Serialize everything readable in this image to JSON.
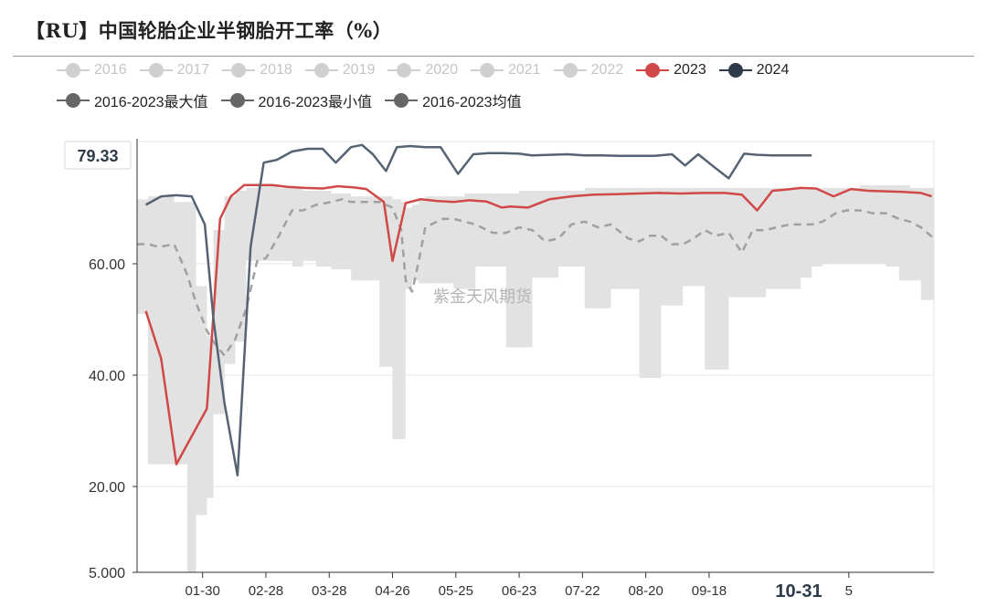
{
  "header": {
    "title": "【RU】中国轮胎企业半钢胎开工率（%）"
  },
  "legend": {
    "row1": [
      {
        "label": "2016",
        "color": "#cfcfcf"
      },
      {
        "label": "2017",
        "color": "#cfcfcf"
      },
      {
        "label": "2018",
        "color": "#cfcfcf"
      },
      {
        "label": "2019",
        "color": "#cfcfcf"
      },
      {
        "label": "2020",
        "color": "#cfcfcf"
      },
      {
        "label": "2021",
        "color": "#cfcfcf"
      },
      {
        "label": "2022",
        "color": "#cfcfcf"
      },
      {
        "label": "2023",
        "color": "#d04848"
      },
      {
        "label": "2024",
        "color": "#2e3b4a"
      }
    ],
    "row2": [
      {
        "label": "2016-2023最大值",
        "color": "#666666"
      },
      {
        "label": "2016-2023最小值",
        "color": "#666666"
      },
      {
        "label": "2016-2023均值",
        "color": "#666666"
      }
    ]
  },
  "watermark": "紫金天风期货",
  "highlight": {
    "y_value": "79.33",
    "x_label": "10-31"
  },
  "chart_data": {
    "type": "line",
    "title": "【RU】中国轮胎企业半钢胎开工率（%）",
    "xlabel": "",
    "ylabel": "",
    "ylim": [
      5,
      83
    ],
    "y_ticks": [
      {
        "value": 5,
        "label": "5.000"
      },
      {
        "value": 20,
        "label": "20.00"
      },
      {
        "value": 40,
        "label": "40.00"
      },
      {
        "value": 60,
        "label": "60.00"
      }
    ],
    "x_ticks": [
      {
        "x": 31,
        "label": "01-30"
      },
      {
        "x": 60,
        "label": "02-28"
      },
      {
        "x": 89,
        "label": "03-28"
      },
      {
        "x": 118,
        "label": "04-26"
      },
      {
        "x": 147,
        "label": "05-25"
      },
      {
        "x": 176,
        "label": "06-23"
      },
      {
        "x": 205,
        "label": "07-22"
      },
      {
        "x": 234,
        "label": "08-20"
      },
      {
        "x": 263,
        "label": "09-18"
      },
      {
        "x": 327,
        "label": "5"
      }
    ],
    "xlim": [
      1,
      366
    ],
    "grid": true,
    "band": {
      "name": "2016-2023最大值 / 2016-2023最小值",
      "x": [
        1,
        6,
        11,
        18,
        24,
        28,
        33,
        36,
        41,
        46,
        51,
        56,
        60,
        66,
        72,
        77,
        83,
        90,
        95,
        99,
        106,
        112,
        118,
        122,
        124,
        127,
        130,
        133,
        141,
        146,
        151,
        156,
        164,
        170,
        176,
        182,
        188,
        194,
        200,
        206,
        212,
        218,
        226,
        231,
        236,
        241,
        246,
        251,
        256,
        261,
        266,
        272,
        278,
        283,
        289,
        294,
        300,
        305,
        310,
        315,
        321,
        326,
        332,
        338,
        344,
        350,
        355,
        360,
        366
      ],
      "max": [
        71.5,
        72.0,
        72.0,
        71.0,
        71.0,
        56.0,
        47.0,
        66.0,
        72.0,
        73.0,
        73.5,
        74.0,
        74.0,
        73.5,
        73.5,
        73.0,
        73.0,
        72.5,
        72.5,
        72.0,
        72.0,
        72.0,
        71.5,
        71.0,
        70.0,
        70.5,
        71.5,
        72.0,
        72.0,
        72.0,
        72.5,
        72.5,
        72.5,
        72.5,
        73.0,
        73.0,
        73.0,
        73.0,
        73.0,
        73.5,
        73.5,
        73.5,
        73.5,
        73.5,
        73.5,
        73.5,
        73.5,
        73.5,
        73.5,
        73.5,
        73.5,
        73.5,
        73.5,
        73.5,
        73.5,
        73.5,
        73.5,
        73.5,
        73.5,
        73.5,
        73.5,
        73.5,
        74.0,
        74.0,
        74.0,
        74.0,
        73.5,
        73.5,
        73.5
      ],
      "min": [
        52.0,
        51.0,
        24.0,
        24.0,
        24.0,
        5.0,
        15.0,
        18.0,
        33.0,
        42.0,
        46.0,
        60.5,
        60.5,
        60.5,
        60.5,
        59.5,
        60.5,
        59.5,
        59.0,
        59.0,
        57.0,
        57.0,
        41.5,
        28.5,
        28.5,
        55.5,
        57.0,
        56.5,
        56.5,
        56.5,
        55.5,
        55.5,
        59.5,
        59.5,
        45.0,
        45.0,
        57.5,
        57.5,
        59.5,
        59.5,
        52.0,
        52.0,
        55.5,
        55.5,
        39.5,
        39.5,
        52.5,
        52.5,
        56.0,
        56.0,
        41.0,
        41.0,
        54.0,
        54.0,
        54.0,
        55.5,
        55.5,
        55.5,
        57.5,
        59.5,
        60.0,
        60.0,
        60.0,
        60.0,
        60.0,
        59.5,
        57.0,
        57.0,
        53.5
      ],
      "color": "#e2e2e2"
    },
    "series": [
      {
        "name": "2016-2023均值",
        "color": "#a0a0a0",
        "dashed": true,
        "x": [
          1,
          6,
          11,
          18,
          24,
          28,
          33,
          36,
          41,
          46,
          51,
          56,
          60,
          66,
          72,
          77,
          83,
          90,
          95,
          99,
          106,
          112,
          118,
          122,
          124,
          127,
          130,
          133,
          141,
          146,
          151,
          156,
          164,
          170,
          176,
          182,
          188,
          194,
          200,
          206,
          212,
          218,
          226,
          231,
          236,
          241,
          246,
          251,
          256,
          261,
          266,
          272,
          278,
          283,
          289,
          294,
          300,
          305,
          310,
          315,
          321,
          326,
          332,
          338,
          344,
          350,
          355,
          360,
          366
        ],
        "y": [
          63.5,
          63.5,
          63.0,
          63.5,
          58.0,
          53.0,
          48.0,
          46.0,
          43.5,
          46.5,
          52.0,
          60.5,
          61.0,
          65.0,
          69.5,
          69.5,
          70.5,
          71.0,
          71.5,
          71.0,
          71.0,
          71.0,
          70.0,
          66.0,
          57.0,
          55.0,
          60.5,
          66.5,
          68.0,
          68.0,
          67.5,
          67.0,
          65.5,
          65.5,
          66.5,
          66.0,
          64.0,
          64.5,
          67.0,
          67.5,
          66.5,
          67.0,
          64.5,
          64.0,
          65.0,
          65.0,
          63.5,
          63.5,
          64.5,
          66.0,
          65.0,
          65.5,
          62.0,
          66.0,
          66.0,
          66.5,
          67.0,
          67.0,
          67.0,
          67.5,
          69.0,
          69.5,
          69.5,
          69.0,
          69.0,
          68.0,
          67.5,
          66.5,
          64.5
        ]
      },
      {
        "name": "2023",
        "color": "#d04848",
        "dashed": false,
        "x": [
          5,
          12,
          19,
          33,
          39,
          44,
          50,
          56,
          63,
          70,
          78,
          86,
          93,
          100,
          106,
          114,
          118,
          124,
          131,
          138,
          146,
          153,
          161,
          168,
          172,
          180,
          190,
          200,
          210,
          220,
          230,
          240,
          250,
          260,
          270,
          278,
          285,
          292,
          298,
          305,
          312,
          320,
          328,
          336,
          344,
          352,
          360,
          365
        ],
        "y": [
          51.5,
          43.0,
          24.0,
          34.0,
          68.0,
          72.0,
          74.0,
          74.0,
          74.0,
          73.7,
          73.5,
          73.4,
          73.8,
          73.6,
          73.3,
          71.0,
          60.5,
          70.8,
          71.5,
          71.2,
          71.0,
          71.3,
          71.1,
          70.0,
          70.2,
          70.0,
          71.5,
          72.0,
          72.3,
          72.4,
          72.5,
          72.6,
          72.5,
          72.6,
          72.6,
          72.3,
          69.5,
          73.0,
          73.2,
          73.5,
          73.4,
          72.0,
          73.3,
          73.0,
          72.9,
          72.8,
          72.6,
          72.0
        ]
      },
      {
        "name": "2024",
        "color": "#556373",
        "dashed": false,
        "x": [
          5,
          12,
          19,
          26,
          32,
          36,
          41,
          47,
          53,
          59,
          65,
          72,
          79,
          86,
          92,
          99,
          104,
          109,
          115,
          120,
          126,
          133,
          140,
          148,
          155,
          162,
          168,
          176,
          182,
          190,
          198,
          206,
          214,
          222,
          230,
          238,
          246,
          252,
          258,
          266,
          272,
          279,
          285,
          292,
          300,
          310
        ],
        "y": [
          70.5,
          72.0,
          72.2,
          72.0,
          67.0,
          50.0,
          35.0,
          22.0,
          63.0,
          78.0,
          78.5,
          80.0,
          80.5,
          80.5,
          78.0,
          80.8,
          81.2,
          79.5,
          76.5,
          80.8,
          81.0,
          80.8,
          80.8,
          76.0,
          79.5,
          79.7,
          79.7,
          79.6,
          79.3,
          79.4,
          79.5,
          79.3,
          79.3,
          79.2,
          79.2,
          79.2,
          79.5,
          77.5,
          79.5,
          77.0,
          75.2,
          79.6,
          79.4,
          79.3,
          79.3,
          79.3
        ]
      }
    ]
  }
}
